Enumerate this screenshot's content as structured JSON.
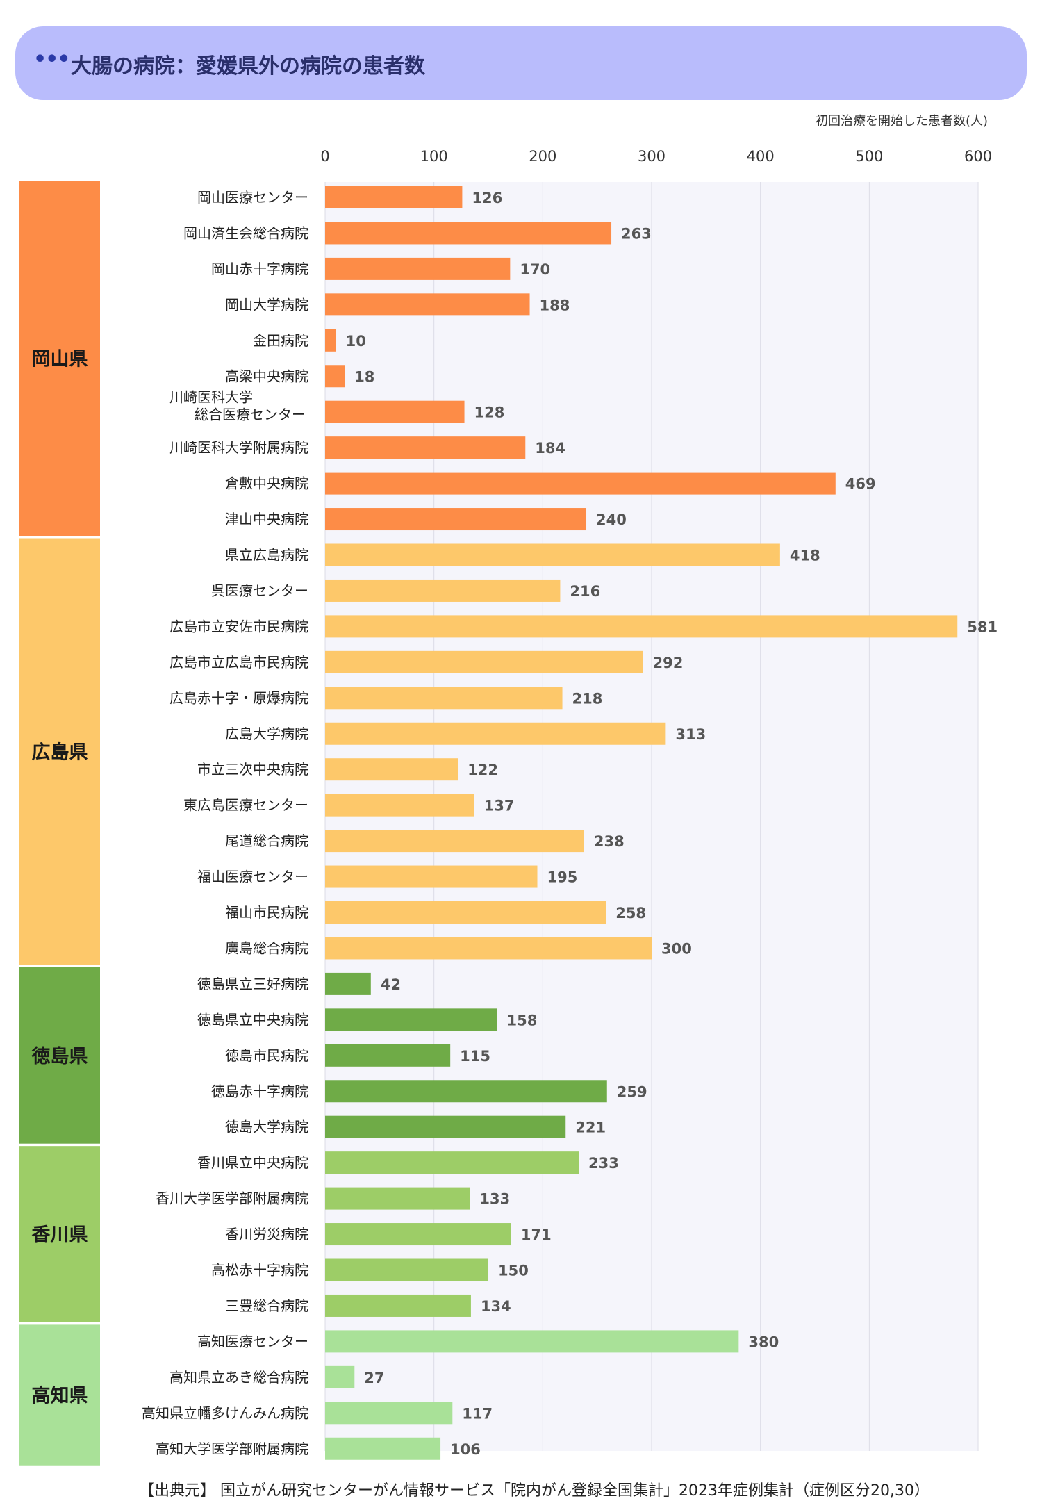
{
  "header": {
    "dots": "•••",
    "title": "大腸の病院：愛媛県外の病院の患者数"
  },
  "unit_label": "初回治療を開始した患者数(人)",
  "source": "【出典元】 国立がん研究センターがん情報サービス「院内がん登録全国集計」2023年症例集計（症例区分20,30）",
  "colors": {
    "岡山県": "#fd8c47",
    "広島県": "#fdc86a",
    "徳島県": "#6fab47",
    "香川県": "#9dcd67",
    "高知県": "#a9e198",
    "plot_bg": "#f5f5fb",
    "grid": "#dcdce6",
    "value_text": "#555555"
  },
  "chart_data": {
    "type": "bar",
    "orientation": "horizontal",
    "title": "大腸の病院：愛媛県外の病院の患者数",
    "xlabel": "初回治療を開始した患者数(人)",
    "xlim": [
      0,
      600
    ],
    "xticks": [
      0,
      100,
      200,
      300,
      400,
      500,
      600
    ],
    "grid": true,
    "groups": [
      {
        "name": "岡山県",
        "hospitals": [
          {
            "label": [
              "岡山医療センター"
            ],
            "value": 126
          },
          {
            "label": [
              "岡山済生会総合病院"
            ],
            "value": 263
          },
          {
            "label": [
              "岡山赤十字病院"
            ],
            "value": 170
          },
          {
            "label": [
              "岡山大学病院"
            ],
            "value": 188
          },
          {
            "label": [
              "金田病院"
            ],
            "value": 10
          },
          {
            "label": [
              "高梁中央病院"
            ],
            "value": 18
          },
          {
            "label": [
              "川崎医科大学",
              "総合医療センター"
            ],
            "value": 128
          },
          {
            "label": [
              "川崎医科大学附属病院"
            ],
            "value": 184
          },
          {
            "label": [
              "倉敷中央病院"
            ],
            "value": 469
          },
          {
            "label": [
              "津山中央病院"
            ],
            "value": 240
          }
        ]
      },
      {
        "name": "広島県",
        "hospitals": [
          {
            "label": [
              "県立広島病院"
            ],
            "value": 418
          },
          {
            "label": [
              "呉医療センター"
            ],
            "value": 216
          },
          {
            "label": [
              "広島市立安佐市民病院"
            ],
            "value": 581
          },
          {
            "label": [
              "広島市立広島市民病院"
            ],
            "value": 292
          },
          {
            "label": [
              "広島赤十字・原爆病院"
            ],
            "value": 218
          },
          {
            "label": [
              "広島大学病院"
            ],
            "value": 313
          },
          {
            "label": [
              "市立三次中央病院"
            ],
            "value": 122
          },
          {
            "label": [
              "東広島医療センター"
            ],
            "value": 137
          },
          {
            "label": [
              "尾道総合病院"
            ],
            "value": 238
          },
          {
            "label": [
              "福山医療センター"
            ],
            "value": 195
          },
          {
            "label": [
              "福山市民病院"
            ],
            "value": 258
          },
          {
            "label": [
              "廣島総合病院"
            ],
            "value": 300
          }
        ]
      },
      {
        "name": "徳島県",
        "hospitals": [
          {
            "label": [
              "徳島県立三好病院"
            ],
            "value": 42
          },
          {
            "label": [
              "徳島県立中央病院"
            ],
            "value": 158
          },
          {
            "label": [
              "徳島市民病院"
            ],
            "value": 115
          },
          {
            "label": [
              "徳島赤十字病院"
            ],
            "value": 259
          },
          {
            "label": [
              "徳島大学病院"
            ],
            "value": 221
          }
        ]
      },
      {
        "name": "香川県",
        "hospitals": [
          {
            "label": [
              "香川県立中央病院"
            ],
            "value": 233
          },
          {
            "label": [
              "香川大学医学部附属病院"
            ],
            "value": 133
          },
          {
            "label": [
              "香川労災病院"
            ],
            "value": 171
          },
          {
            "label": [
              "高松赤十字病院"
            ],
            "value": 150
          },
          {
            "label": [
              "三豊総合病院"
            ],
            "value": 134
          }
        ]
      },
      {
        "name": "高知県",
        "hospitals": [
          {
            "label": [
              "高知医療センター"
            ],
            "value": 380
          },
          {
            "label": [
              "高知県立あき総合病院"
            ],
            "value": 27
          },
          {
            "label": [
              "高知県立幡多けんみん病院"
            ],
            "value": 117
          },
          {
            "label": [
              "高知大学医学部附属病院"
            ],
            "value": 106
          }
        ]
      }
    ]
  }
}
